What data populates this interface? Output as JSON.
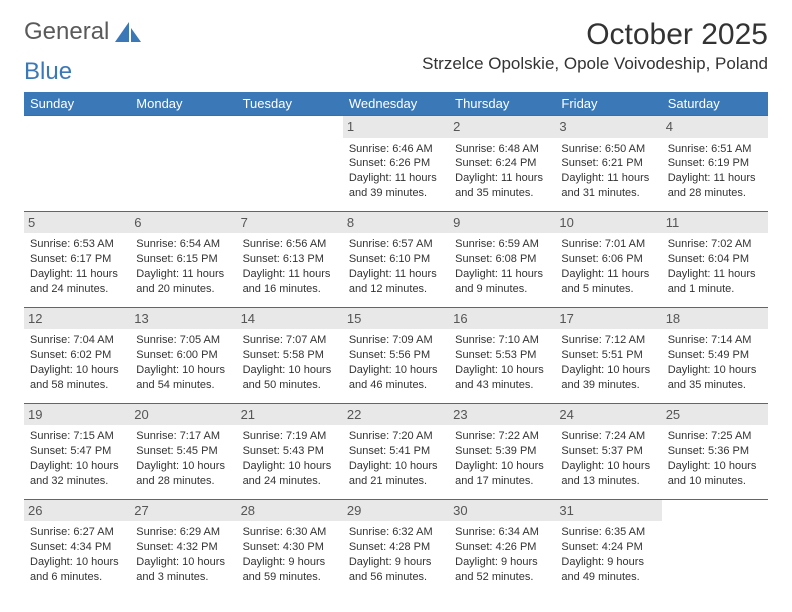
{
  "brand": {
    "word1": "General",
    "word2": "Blue"
  },
  "title": "October 2025",
  "location": "Strzelce Opolskie, Opole Voivodeship, Poland",
  "colors": {
    "header_bg": "#3a78b8",
    "header_fg": "#ffffff",
    "daynum_bg": "#e8e8e8",
    "daynum_fg": "#555555",
    "rule": "#3a6ea5",
    "text": "#333333",
    "logo_gray": "#5a5a5a",
    "logo_blue": "#3a78b8",
    "page_bg": "#ffffff"
  },
  "typography": {
    "title_fontsize": 30,
    "location_fontsize": 17,
    "dayheader_fontsize": 13,
    "daynum_fontsize": 13,
    "cell_fontsize": 11
  },
  "layout": {
    "columns": 7,
    "rows": 5,
    "leading_blanks": 3
  },
  "day_headers": [
    "Sunday",
    "Monday",
    "Tuesday",
    "Wednesday",
    "Thursday",
    "Friday",
    "Saturday"
  ],
  "days": [
    {
      "n": "1",
      "sunrise": "6:46 AM",
      "sunset": "6:26 PM",
      "daylight": "11 hours and 39 minutes."
    },
    {
      "n": "2",
      "sunrise": "6:48 AM",
      "sunset": "6:24 PM",
      "daylight": "11 hours and 35 minutes."
    },
    {
      "n": "3",
      "sunrise": "6:50 AM",
      "sunset": "6:21 PM",
      "daylight": "11 hours and 31 minutes."
    },
    {
      "n": "4",
      "sunrise": "6:51 AM",
      "sunset": "6:19 PM",
      "daylight": "11 hours and 28 minutes."
    },
    {
      "n": "5",
      "sunrise": "6:53 AM",
      "sunset": "6:17 PM",
      "daylight": "11 hours and 24 minutes."
    },
    {
      "n": "6",
      "sunrise": "6:54 AM",
      "sunset": "6:15 PM",
      "daylight": "11 hours and 20 minutes."
    },
    {
      "n": "7",
      "sunrise": "6:56 AM",
      "sunset": "6:13 PM",
      "daylight": "11 hours and 16 minutes."
    },
    {
      "n": "8",
      "sunrise": "6:57 AM",
      "sunset": "6:10 PM",
      "daylight": "11 hours and 12 minutes."
    },
    {
      "n": "9",
      "sunrise": "6:59 AM",
      "sunset": "6:08 PM",
      "daylight": "11 hours and 9 minutes."
    },
    {
      "n": "10",
      "sunrise": "7:01 AM",
      "sunset": "6:06 PM",
      "daylight": "11 hours and 5 minutes."
    },
    {
      "n": "11",
      "sunrise": "7:02 AM",
      "sunset": "6:04 PM",
      "daylight": "11 hours and 1 minute."
    },
    {
      "n": "12",
      "sunrise": "7:04 AM",
      "sunset": "6:02 PM",
      "daylight": "10 hours and 58 minutes."
    },
    {
      "n": "13",
      "sunrise": "7:05 AM",
      "sunset": "6:00 PM",
      "daylight": "10 hours and 54 minutes."
    },
    {
      "n": "14",
      "sunrise": "7:07 AM",
      "sunset": "5:58 PM",
      "daylight": "10 hours and 50 minutes."
    },
    {
      "n": "15",
      "sunrise": "7:09 AM",
      "sunset": "5:56 PM",
      "daylight": "10 hours and 46 minutes."
    },
    {
      "n": "16",
      "sunrise": "7:10 AM",
      "sunset": "5:53 PM",
      "daylight": "10 hours and 43 minutes."
    },
    {
      "n": "17",
      "sunrise": "7:12 AM",
      "sunset": "5:51 PM",
      "daylight": "10 hours and 39 minutes."
    },
    {
      "n": "18",
      "sunrise": "7:14 AM",
      "sunset": "5:49 PM",
      "daylight": "10 hours and 35 minutes."
    },
    {
      "n": "19",
      "sunrise": "7:15 AM",
      "sunset": "5:47 PM",
      "daylight": "10 hours and 32 minutes."
    },
    {
      "n": "20",
      "sunrise": "7:17 AM",
      "sunset": "5:45 PM",
      "daylight": "10 hours and 28 minutes."
    },
    {
      "n": "21",
      "sunrise": "7:19 AM",
      "sunset": "5:43 PM",
      "daylight": "10 hours and 24 minutes."
    },
    {
      "n": "22",
      "sunrise": "7:20 AM",
      "sunset": "5:41 PM",
      "daylight": "10 hours and 21 minutes."
    },
    {
      "n": "23",
      "sunrise": "7:22 AM",
      "sunset": "5:39 PM",
      "daylight": "10 hours and 17 minutes."
    },
    {
      "n": "24",
      "sunrise": "7:24 AM",
      "sunset": "5:37 PM",
      "daylight": "10 hours and 13 minutes."
    },
    {
      "n": "25",
      "sunrise": "7:25 AM",
      "sunset": "5:36 PM",
      "daylight": "10 hours and 10 minutes."
    },
    {
      "n": "26",
      "sunrise": "6:27 AM",
      "sunset": "4:34 PM",
      "daylight": "10 hours and 6 minutes."
    },
    {
      "n": "27",
      "sunrise": "6:29 AM",
      "sunset": "4:32 PM",
      "daylight": "10 hours and 3 minutes."
    },
    {
      "n": "28",
      "sunrise": "6:30 AM",
      "sunset": "4:30 PM",
      "daylight": "9 hours and 59 minutes."
    },
    {
      "n": "29",
      "sunrise": "6:32 AM",
      "sunset": "4:28 PM",
      "daylight": "9 hours and 56 minutes."
    },
    {
      "n": "30",
      "sunrise": "6:34 AM",
      "sunset": "4:26 PM",
      "daylight": "9 hours and 52 minutes."
    },
    {
      "n": "31",
      "sunrise": "6:35 AM",
      "sunset": "4:24 PM",
      "daylight": "9 hours and 49 minutes."
    }
  ],
  "labels": {
    "sunrise": "Sunrise: ",
    "sunset": "Sunset: ",
    "daylight": "Daylight: "
  }
}
